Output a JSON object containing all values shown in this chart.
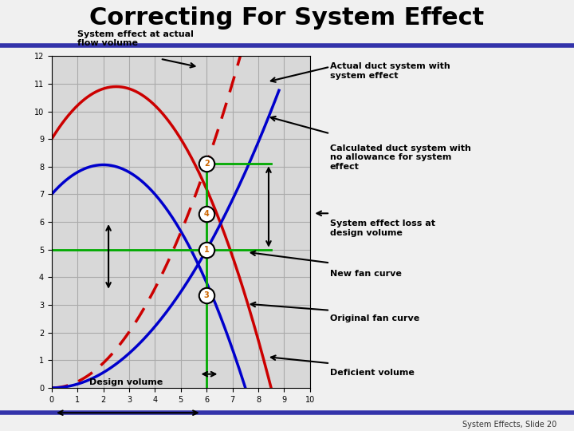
{
  "title": "Correcting For System Effect",
  "title_fontsize": 22,
  "background_color": "#f0f0f0",
  "plot_bg": "#d8d8d8",
  "xlim": [
    0,
    10
  ],
  "ylim": [
    0,
    12
  ],
  "xticks": [
    0,
    1,
    2,
    3,
    4,
    5,
    6,
    7,
    8,
    9,
    10
  ],
  "yticks": [
    0,
    1,
    2,
    3,
    4,
    5,
    6,
    7,
    8,
    9,
    10,
    11,
    12
  ],
  "grid_color": "#aaaaaa",
  "red_color": "#cc0000",
  "blue_color": "#0000cc",
  "green_color": "#00aa00",
  "footer": "System Effects, Slide 20",
  "footer_color": "#333333",
  "header_bar_color": "#3333aa",
  "ann_system_effect_actual": "System effect at actual\nflow volume",
  "ann_actual_duct": "Actual duct system with\nsystem effect",
  "ann_calculated_duct": "Calculated duct system with\nno allowance for system\neffect",
  "ann_system_effect_loss": "System effect loss at\ndesign volume",
  "ann_new_fan": "New fan curve",
  "ann_original_fan": "Original fan curve",
  "ann_deficient_volume": "Deficient volume",
  "ann_design_volume": "Design volume",
  "point1": [
    6.0,
    5.0
  ],
  "point2": [
    6.0,
    8.1
  ],
  "point3": [
    6.0,
    3.35
  ],
  "point4": [
    6.0,
    6.3
  ],
  "red_fan_a": -0.303,
  "red_fan_b": 1.515,
  "red_fan_c": 9.0,
  "blue_fan_a": -0.2667,
  "blue_fan_b": 1.0667,
  "blue_fan_c": 7.0,
  "k_red_sys": 0.225,
  "k_blue_sys": 0.1389,
  "green_h1_y": 5.0,
  "green_h2_y": 8.1,
  "green_v_x": 6.0
}
